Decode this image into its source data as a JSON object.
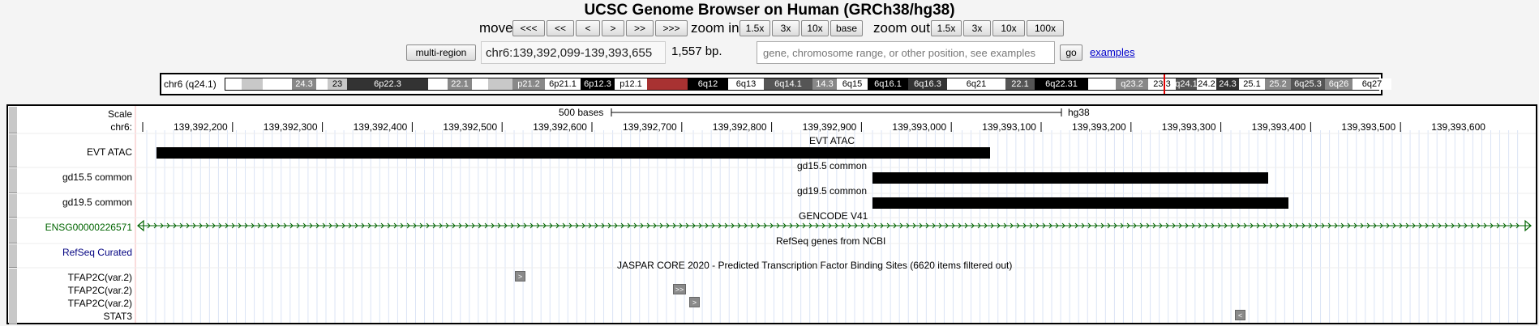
{
  "title": "UCSC Genome Browser on Human (GRCh38/hg38)",
  "nav": {
    "move_label": "move",
    "move_buttons": [
      "<<<",
      "<<",
      "<",
      ">",
      ">>",
      ">>>"
    ],
    "zoom_in_label": "zoom in",
    "zoom_in_buttons": [
      "1.5x",
      "3x",
      "10x",
      "base"
    ],
    "zoom_out_label": "zoom out",
    "zoom_out_buttons": [
      "1.5x",
      "3x",
      "10x",
      "100x"
    ]
  },
  "position_bar": {
    "multi_region_label": "multi-region",
    "position": "chr6:139,392,099-139,393,655",
    "size_text": "1,557 bp.",
    "search_placeholder": "gene, chromosome range, or other position, see examples",
    "go_label": "go",
    "examples_label": "examples"
  },
  "ideogram": {
    "label": "chr6 (q24.1)",
    "bands": [
      {
        "label": "",
        "color": "#ffffff"
      },
      {
        "label": "",
        "color": "#c8c8c8"
      },
      {
        "label": "",
        "color": "#ffffff"
      },
      {
        "label": "24.3",
        "color": "#888888"
      },
      {
        "label": "",
        "color": "#ffffff"
      },
      {
        "label": "23",
        "color": "#c8c8c8"
      },
      {
        "label": "6p22.3",
        "color": "#333333"
      },
      {
        "label": "",
        "color": "#ffffff"
      },
      {
        "label": "22.1",
        "color": "#888888"
      },
      {
        "label": "",
        "color": "#ffffff"
      },
      {
        "label": "",
        "color": "#c8c8c8"
      },
      {
        "label": "p21.2",
        "color": "#888888"
      },
      {
        "label": "6p21.1",
        "color": "#ffffff"
      },
      {
        "label": "6p12.3",
        "color": "#000000"
      },
      {
        "label": "p12.1",
        "color": "#ffffff"
      },
      {
        "label": "",
        "color": "#a83232"
      },
      {
        "label": "6q12",
        "color": "#000000"
      },
      {
        "label": "6q13",
        "color": "#ffffff"
      },
      {
        "label": "6q14.1",
        "color": "#555555"
      },
      {
        "label": "14.3",
        "color": "#888888"
      },
      {
        "label": "6q15",
        "color": "#ffffff"
      },
      {
        "label": "6q16.1",
        "color": "#000000"
      },
      {
        "label": "6q16.3",
        "color": "#333333"
      },
      {
        "label": "6q21",
        "color": "#ffffff"
      },
      {
        "label": "22.1",
        "color": "#555555"
      },
      {
        "label": "6q22.31",
        "color": "#000000"
      },
      {
        "label": "",
        "color": "#ffffff"
      },
      {
        "label": "q23.2",
        "color": "#888888"
      },
      {
        "label": "23.3",
        "color": "#ffffff"
      },
      {
        "label": "q24.1",
        "color": "#555555"
      },
      {
        "label": "24.2",
        "color": "#ffffff"
      },
      {
        "label": "24.3",
        "color": "#333333"
      },
      {
        "label": "25.1",
        "color": "#ffffff"
      },
      {
        "label": "25.2",
        "color": "#888888"
      },
      {
        "label": "6q25.3",
        "color": "#555555"
      },
      {
        "label": "6q26",
        "color": "#888888"
      },
      {
        "label": "6q27",
        "color": "#ffffff"
      }
    ]
  },
  "tracks": {
    "scale_label": "Scale",
    "scale_bar_label": "500 bases",
    "assembly": "hg38",
    "chrom_label": "chr6:",
    "ticks": [
      "139,392,200",
      "139,392,300",
      "139,392,400",
      "139,392,500",
      "139,392,600",
      "139,392,700",
      "139,392,800",
      "139,392,900",
      "139,393,000",
      "139,393,100",
      "139,393,200",
      "139,393,300",
      "139,393,400",
      "139,393,500",
      "139,393,600"
    ],
    "evt_atac": {
      "label": "EVT ATAC",
      "center_label": "EVT ATAC"
    },
    "gd15": {
      "label": "gd15.5 common",
      "center_label": "gd15.5 common"
    },
    "gd19": {
      "label": "gd19.5 common",
      "center_label": "gd19.5 common"
    },
    "gencode": {
      "label": "ENSG00000226571",
      "center_label": "GENCODE V41",
      "color": "#006400"
    },
    "refseq": {
      "label": "RefSeq Curated",
      "center_label": "RefSeq genes from NCBI",
      "color": "#000080"
    },
    "jaspar": {
      "center_label": "JASPAR CORE 2020 - Predicted Transcription Factor Binding Sites (6620 items filtered out)",
      "rows": [
        "TFAP2C(var.2)",
        "TFAP2C(var.2)",
        "TFAP2C(var.2)",
        "STAT3"
      ]
    }
  }
}
